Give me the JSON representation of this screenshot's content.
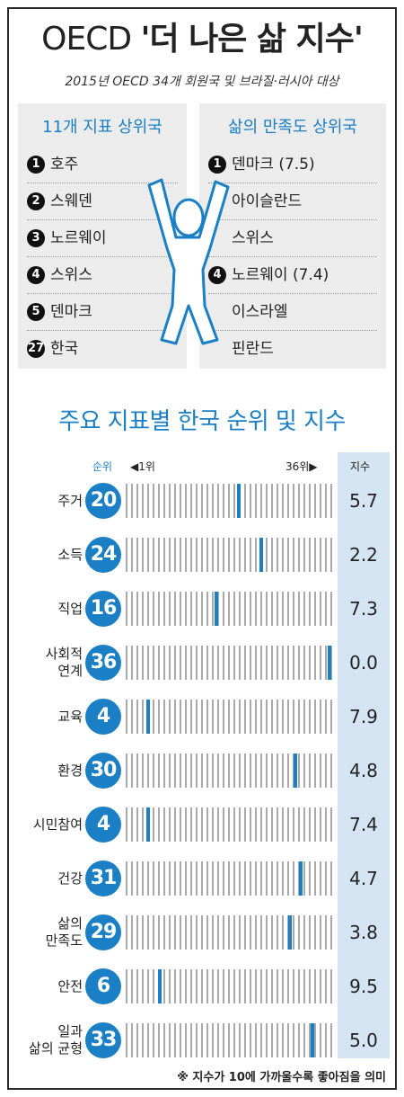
{
  "title": {
    "prefix": "OECD ",
    "main": "'더 나은 삶 지수'"
  },
  "subtitle": "2015년 OECD 34개 회원국 및 브라질·러시아 대상",
  "left_panel": {
    "heading": "11개 지표 상위국",
    "items": [
      {
        "num": "1",
        "name": "호주"
      },
      {
        "num": "2",
        "name": "스웨덴"
      },
      {
        "num": "3",
        "name": "노르웨이"
      },
      {
        "num": "4",
        "name": "스위스"
      },
      {
        "num": "5",
        "name": "덴마크"
      },
      {
        "num": "27",
        "name": "한국"
      }
    ]
  },
  "right_panel": {
    "heading": "삶의 만족도 상위국",
    "items": [
      {
        "num": "1",
        "name": "덴마크 (7.5)"
      },
      {
        "num": "",
        "name": "아이슬란드"
      },
      {
        "num": "",
        "name": "스위스"
      },
      {
        "num": "4",
        "name": "노르웨이 (7.4)"
      },
      {
        "num": "",
        "name": "이스라엘"
      },
      {
        "num": "",
        "name": "핀란드"
      }
    ]
  },
  "section_title": "주요 지표별 한국 순위 및 지수",
  "headers": {
    "rank": "순위",
    "first": "◀1위",
    "last": "36위▶",
    "index": "지수"
  },
  "footnote": "※ 지수가 10에 가까울수록 좋아짐을 의미",
  "chart_data": {
    "type": "bar",
    "title": "주요 지표별 한국 순위 및 지수",
    "rank_range": [
      1,
      36
    ],
    "categories": [
      "주거",
      "소득",
      "직업",
      "사회적\n연계",
      "교육",
      "환경",
      "시민참여",
      "건강",
      "삶의\n만족도",
      "안전",
      "일과\n삶의 균형"
    ],
    "series": [
      {
        "name": "순위",
        "values": [
          20,
          24,
          16,
          36,
          4,
          30,
          4,
          31,
          29,
          6,
          33
        ]
      },
      {
        "name": "지수",
        "values": [
          "5.7",
          "2.2",
          "7.3",
          "0.0",
          "7.9",
          "4.8",
          "7.4",
          "4.7",
          "3.8",
          "9.5",
          "5.0"
        ]
      }
    ]
  },
  "colors": {
    "accent": "#1a7fc4",
    "index_column": "#d4e4f2",
    "panel": "#ececec"
  }
}
